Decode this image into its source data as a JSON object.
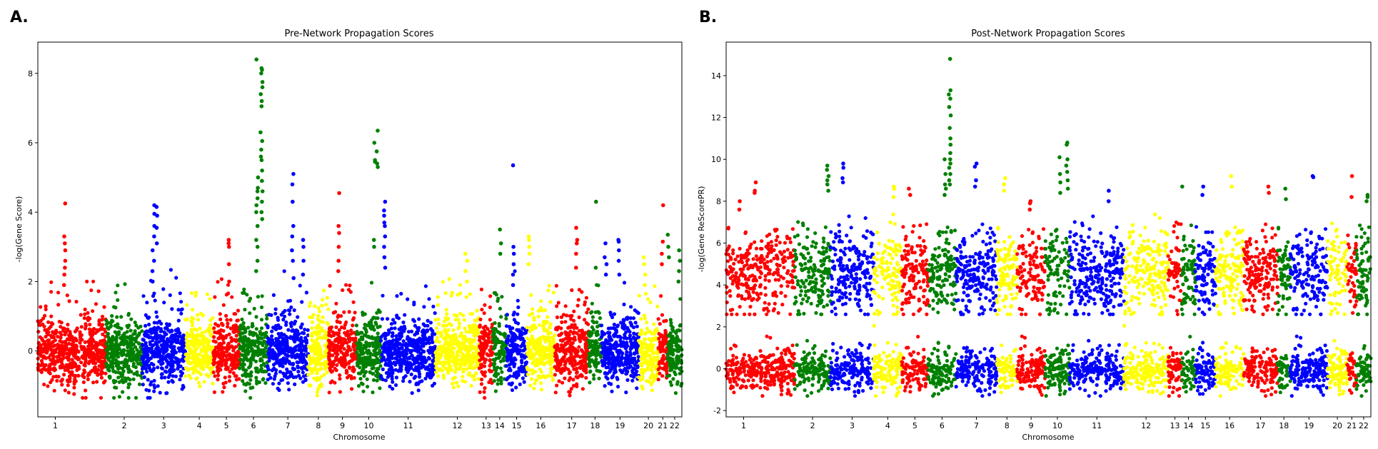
{
  "colors": {
    "red": "#ff0000",
    "green": "#008000",
    "blue": "#0000ff",
    "yellow": "#ffff00"
  },
  "chromosome_colors": [
    "red",
    "red",
    "green",
    "blue",
    "yellow",
    "red",
    "green",
    "blue",
    "yellow",
    "red",
    "green",
    "blue",
    "yellow",
    "red",
    "green",
    "blue",
    "yellow",
    "red",
    "green",
    "blue",
    "yellow",
    "red",
    "green"
  ],
  "chart_data": [
    {
      "type": "scatter",
      "panel_label": "A.",
      "title": "Pre-Network Propagation Scores",
      "xlabel": "Chromosome",
      "ylabel": "-log(Gene Score)",
      "ylim": [
        -1.9,
        8.9
      ],
      "yticks": [
        0,
        2,
        4,
        6,
        8
      ],
      "grid": false,
      "legend": "none",
      "chromosomes": [
        {
          "label": "1",
          "start": 0,
          "end": 2060,
          "color": "red"
        },
        {
          "label": "",
          "start": 2060,
          "end": 4040,
          "color": "red"
        },
        {
          "label": "2",
          "start": 4040,
          "end": 6150,
          "color": "green"
        },
        {
          "label": "3",
          "start": 6150,
          "end": 8700,
          "color": "blue"
        },
        {
          "label": "4",
          "start": 8700,
          "end": 10350,
          "color": "yellow"
        },
        {
          "label": "5",
          "start": 10350,
          "end": 11900,
          "color": "red"
        },
        {
          "label": "6",
          "start": 11900,
          "end": 13550,
          "color": "green"
        },
        {
          "label": "7",
          "start": 13550,
          "end": 15950,
          "color": "blue"
        },
        {
          "label": "8",
          "start": 15950,
          "end": 17150,
          "color": "yellow"
        },
        {
          "label": "9",
          "start": 17150,
          "end": 18800,
          "color": "red"
        },
        {
          "label": "10",
          "start": 18800,
          "end": 20250,
          "color": "green"
        },
        {
          "label": "11",
          "start": 20250,
          "end": 23450,
          "color": "blue"
        },
        {
          "label": "12",
          "start": 23450,
          "end": 26050,
          "color": "yellow"
        },
        {
          "label": "13",
          "start": 26050,
          "end": 26850,
          "color": "red"
        },
        {
          "label": "14",
          "start": 26850,
          "end": 27650,
          "color": "green"
        },
        {
          "label": "15",
          "start": 27650,
          "end": 28850,
          "color": "blue"
        },
        {
          "label": "16",
          "start": 28850,
          "end": 30500,
          "color": "yellow"
        },
        {
          "label": "17",
          "start": 30500,
          "end": 32500,
          "color": "red"
        },
        {
          "label": "18",
          "start": 32500,
          "end": 33250,
          "color": "green"
        },
        {
          "label": "19",
          "start": 33250,
          "end": 35450,
          "color": "blue"
        },
        {
          "label": "20",
          "start": 35450,
          "end": 36600,
          "color": "yellow"
        },
        {
          "label": "21",
          "start": 36600,
          "end": 37150,
          "color": "red"
        },
        {
          "label": "22",
          "start": 37150,
          "end": 38000,
          "color": "green"
        }
      ],
      "baseline": {
        "center": -0.05,
        "spread": 0.45,
        "tail": 0.35
      },
      "peaks": [
        {
          "x": 1600,
          "values": [
            4.25,
            3.3,
            3.1,
            2.9,
            2.6,
            2.4,
            2.2,
            1.9
          ]
        },
        {
          "x": 6820,
          "values": [
            4.2,
            3.95,
            3.6,
            3.3,
            2.9,
            2.6,
            2.3,
            2.0
          ]
        },
        {
          "x": 7030,
          "values": [
            4.15,
            3.9,
            3.55,
            3.1
          ]
        },
        {
          "x": 11240,
          "values": [
            3.2,
            3.1,
            3.0,
            2.5,
            2.0
          ]
        },
        {
          "x": 12940,
          "values": [
            8.4,
            5.0,
            4.7,
            4.6,
            4.4,
            4.2,
            4.0,
            3.6,
            3.2,
            3.0,
            2.6,
            2.3
          ]
        },
        {
          "x": 13200,
          "values": [
            8.15,
            8.1,
            8.0,
            7.75,
            7.6,
            7.4,
            7.2,
            7.05,
            6.3,
            6.05,
            5.8,
            5.6,
            5.5,
            5.2,
            4.9,
            4.6,
            4.3,
            4.0,
            3.8
          ]
        },
        {
          "x": 15050,
          "values": [
            5.1,
            4.8,
            4.3,
            3.6,
            3.3,
            2.9,
            2.6,
            2.1
          ]
        },
        {
          "x": 15700,
          "values": [
            3.2,
            3.0,
            2.6,
            2.2
          ]
        },
        {
          "x": 17780,
          "values": [
            4.55,
            3.6,
            3.4,
            3.0,
            2.6,
            2.3
          ]
        },
        {
          "x": 19870,
          "values": [
            6.0,
            5.5,
            5.45,
            3.2,
            3.0
          ]
        },
        {
          "x": 20050,
          "values": [
            6.35,
            5.75,
            5.4,
            5.3
          ]
        },
        {
          "x": 20440,
          "values": [
            4.3,
            4.05,
            3.9,
            3.7,
            3.6,
            3.3,
            3.0,
            2.7,
            2.4
          ]
        },
        {
          "x": 25280,
          "values": [
            2.8,
            2.6,
            2.3,
            2.0
          ]
        },
        {
          "x": 27300,
          "values": [
            3.5,
            3.1,
            2.8
          ]
        },
        {
          "x": 28080,
          "values": [
            5.35,
            3.0,
            2.8,
            2.5,
            2.2,
            1.9
          ]
        },
        {
          "x": 29000,
          "values": [
            3.3,
            3.2,
            3.0,
            2.8,
            2.5
          ]
        },
        {
          "x": 31800,
          "values": [
            3.55,
            3.2,
            3.1,
            2.8,
            2.4
          ]
        },
        {
          "x": 32950,
          "values": [
            4.3,
            2.4
          ]
        },
        {
          "x": 33500,
          "values": [
            3.1,
            2.5,
            2.7,
            2.2
          ]
        },
        {
          "x": 34300,
          "values": [
            3.2,
            3.15,
            2.9,
            2.6,
            2.2
          ]
        },
        {
          "x": 35800,
          "values": [
            2.7,
            2.5,
            2.2,
            1.9
          ]
        },
        {
          "x": 36850,
          "values": [
            4.2,
            3.15,
            2.8,
            2.5
          ]
        },
        {
          "x": 37200,
          "values": [
            3.35,
            3.0,
            2.7
          ]
        },
        {
          "x": 37850,
          "values": [
            2.9,
            2.6,
            2.3,
            2.0
          ]
        }
      ]
    },
    {
      "type": "scatter",
      "panel_label": "B.",
      "title": "Post-Network Propagation Scores",
      "xlabel": "Chromosome",
      "ylabel": "-log(Gene ReScorePR)",
      "ylim": [
        -2.3,
        15.6
      ],
      "yticks": [
        -2,
        0,
        2,
        4,
        6,
        8,
        10,
        12,
        14
      ],
      "grid": false,
      "legend": "none",
      "chromosomes": [
        {
          "label": "1",
          "start": 0,
          "end": 2060,
          "color": "red"
        },
        {
          "label": "",
          "start": 2060,
          "end": 4040,
          "color": "red"
        },
        {
          "label": "2",
          "start": 4040,
          "end": 6150,
          "color": "green"
        },
        {
          "label": "3",
          "start": 6150,
          "end": 8700,
          "color": "blue"
        },
        {
          "label": "4",
          "start": 8700,
          "end": 10350,
          "color": "yellow"
        },
        {
          "label": "5",
          "start": 10350,
          "end": 11900,
          "color": "red"
        },
        {
          "label": "6",
          "start": 11900,
          "end": 13550,
          "color": "green"
        },
        {
          "label": "7",
          "start": 13550,
          "end": 15950,
          "color": "blue"
        },
        {
          "label": "8",
          "start": 15950,
          "end": 17150,
          "color": "yellow"
        },
        {
          "label": "9",
          "start": 17150,
          "end": 18800,
          "color": "red"
        },
        {
          "label": "10",
          "start": 18800,
          "end": 20250,
          "color": "green"
        },
        {
          "label": "11",
          "start": 20250,
          "end": 23450,
          "color": "blue"
        },
        {
          "label": "12",
          "start": 23450,
          "end": 26050,
          "color": "yellow"
        },
        {
          "label": "13",
          "start": 26050,
          "end": 26850,
          "color": "red"
        },
        {
          "label": "14",
          "start": 26850,
          "end": 27650,
          "color": "green"
        },
        {
          "label": "15",
          "start": 27650,
          "end": 28850,
          "color": "blue"
        },
        {
          "label": "16",
          "start": 28850,
          "end": 30500,
          "color": "yellow"
        },
        {
          "label": "17",
          "start": 30500,
          "end": 32500,
          "color": "red"
        },
        {
          "label": "18",
          "start": 32500,
          "end": 33250,
          "color": "green"
        },
        {
          "label": "19",
          "start": 33250,
          "end": 35450,
          "color": "blue"
        },
        {
          "label": "20",
          "start": 35450,
          "end": 36600,
          "color": "yellow"
        },
        {
          "label": "21",
          "start": 36600,
          "end": 37150,
          "color": "red"
        },
        {
          "label": "22",
          "start": 37150,
          "end": 38000,
          "color": "green"
        }
      ],
      "bands": [
        {
          "center": 4.6,
          "spread": 1.0,
          "tail": 0.0,
          "lo": 2.6,
          "hi": 8.6
        },
        {
          "center": -0.15,
          "spread": 0.45,
          "tail": 0.25,
          "lo": -1.3,
          "hi": 2.5
        }
      ],
      "peaks": [
        {
          "x": 800,
          "values": [
            8.0,
            7.6
          ]
        },
        {
          "x": 1700,
          "values": [
            8.9,
            8.5,
            8.4
          ]
        },
        {
          "x": 6000,
          "values": [
            9.7,
            9.5,
            9.2,
            9.0,
            8.8,
            8.5
          ]
        },
        {
          "x": 6900,
          "values": [
            9.8,
            9.6,
            9.1,
            8.9
          ]
        },
        {
          "x": 9900,
          "values": [
            8.7,
            8.6,
            8.2
          ]
        },
        {
          "x": 10800,
          "values": [
            8.6,
            8.3
          ]
        },
        {
          "x": 12900,
          "values": [
            10.0,
            9.3,
            8.8,
            8.6,
            8.3
          ]
        },
        {
          "x": 13180,
          "values": [
            14.8,
            13.3,
            13.1,
            12.9,
            12.5,
            12.1,
            11.5,
            11.0,
            10.7,
            10.3,
            10.0,
            9.8,
            9.6,
            9.3,
            9.0,
            8.8
          ]
        },
        {
          "x": 14700,
          "values": [
            9.8,
            9.65,
            9.0,
            8.7
          ]
        },
        {
          "x": 16400,
          "values": [
            9.1,
            8.8,
            8.5
          ]
        },
        {
          "x": 17900,
          "values": [
            8.0,
            7.9,
            7.6
          ]
        },
        {
          "x": 19700,
          "values": [
            10.1,
            9.3,
            8.9,
            8.4
          ]
        },
        {
          "x": 20100,
          "values": [
            10.8,
            10.7,
            10.0,
            9.7,
            9.4,
            9.0,
            8.6
          ]
        },
        {
          "x": 22500,
          "values": [
            8.5,
            8.0
          ]
        },
        {
          "x": 26900,
          "values": [
            8.7
          ]
        },
        {
          "x": 28100,
          "values": [
            8.7,
            8.3
          ]
        },
        {
          "x": 29800,
          "values": [
            9.2,
            8.7
          ]
        },
        {
          "x": 32000,
          "values": [
            8.7,
            8.4
          ]
        },
        {
          "x": 32950,
          "values": [
            8.6,
            8.1
          ]
        },
        {
          "x": 34600,
          "values": [
            9.2,
            9.15
          ]
        },
        {
          "x": 36850,
          "values": [
            9.2,
            8.2
          ]
        },
        {
          "x": 37800,
          "values": [
            8.3,
            8.2,
            8.0
          ]
        }
      ]
    }
  ]
}
